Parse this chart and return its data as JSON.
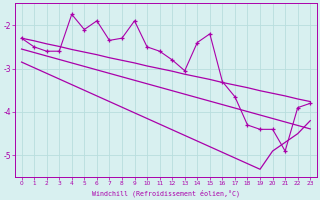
{
  "xlabel": "Windchill (Refroidissement éolien,°C)",
  "background_color": "#d8f0f0",
  "line_color": "#aa00aa",
  "grid_color": "#b8dede",
  "x_values": [
    0,
    1,
    2,
    3,
    4,
    5,
    6,
    7,
    8,
    9,
    10,
    11,
    12,
    13,
    14,
    15,
    16,
    17,
    18,
    19,
    20,
    21,
    22,
    23
  ],
  "main_line": [
    -2.3,
    -2.5,
    -2.6,
    -2.6,
    -1.75,
    -2.1,
    -1.9,
    -2.35,
    -2.3,
    -1.9,
    -2.5,
    -2.6,
    -2.8,
    -3.05,
    -2.4,
    -2.2,
    -3.3,
    -3.65,
    -4.3,
    -4.4,
    -4.4,
    -4.9,
    -3.9,
    -3.8
  ],
  "upper_trend": [
    -2.3,
    -2.36,
    -2.43,
    -2.49,
    -2.56,
    -2.62,
    -2.68,
    -2.75,
    -2.81,
    -2.87,
    -2.94,
    -3.0,
    -3.06,
    -3.13,
    -3.19,
    -3.25,
    -3.32,
    -3.38,
    -3.44,
    -3.51,
    -3.57,
    -3.63,
    -3.7,
    -3.76
  ],
  "mid_trend": [
    -2.55,
    -2.63,
    -2.71,
    -2.79,
    -2.87,
    -2.95,
    -3.03,
    -3.11,
    -3.19,
    -3.27,
    -3.35,
    -3.43,
    -3.51,
    -3.59,
    -3.67,
    -3.75,
    -3.83,
    -3.91,
    -3.99,
    -4.07,
    -4.15,
    -4.23,
    -4.31,
    -4.39
  ],
  "lower_trend": [
    -2.85,
    -2.98,
    -3.11,
    -3.24,
    -3.37,
    -3.5,
    -3.63,
    -3.76,
    -3.89,
    -4.02,
    -4.15,
    -4.28,
    -4.41,
    -4.54,
    -4.67,
    -4.8,
    -4.93,
    -5.06,
    -5.19,
    -5.32,
    -4.9,
    -4.7,
    -4.5,
    -4.2
  ],
  "ylim": [
    -5.5,
    -1.5
  ],
  "xlim": [
    -0.5,
    23.5
  ],
  "yticks": [
    -5,
    -4,
    -3,
    -2
  ],
  "xticks": [
    0,
    1,
    2,
    3,
    4,
    5,
    6,
    7,
    8,
    9,
    10,
    11,
    12,
    13,
    14,
    15,
    16,
    17,
    18,
    19,
    20,
    21,
    22,
    23
  ]
}
